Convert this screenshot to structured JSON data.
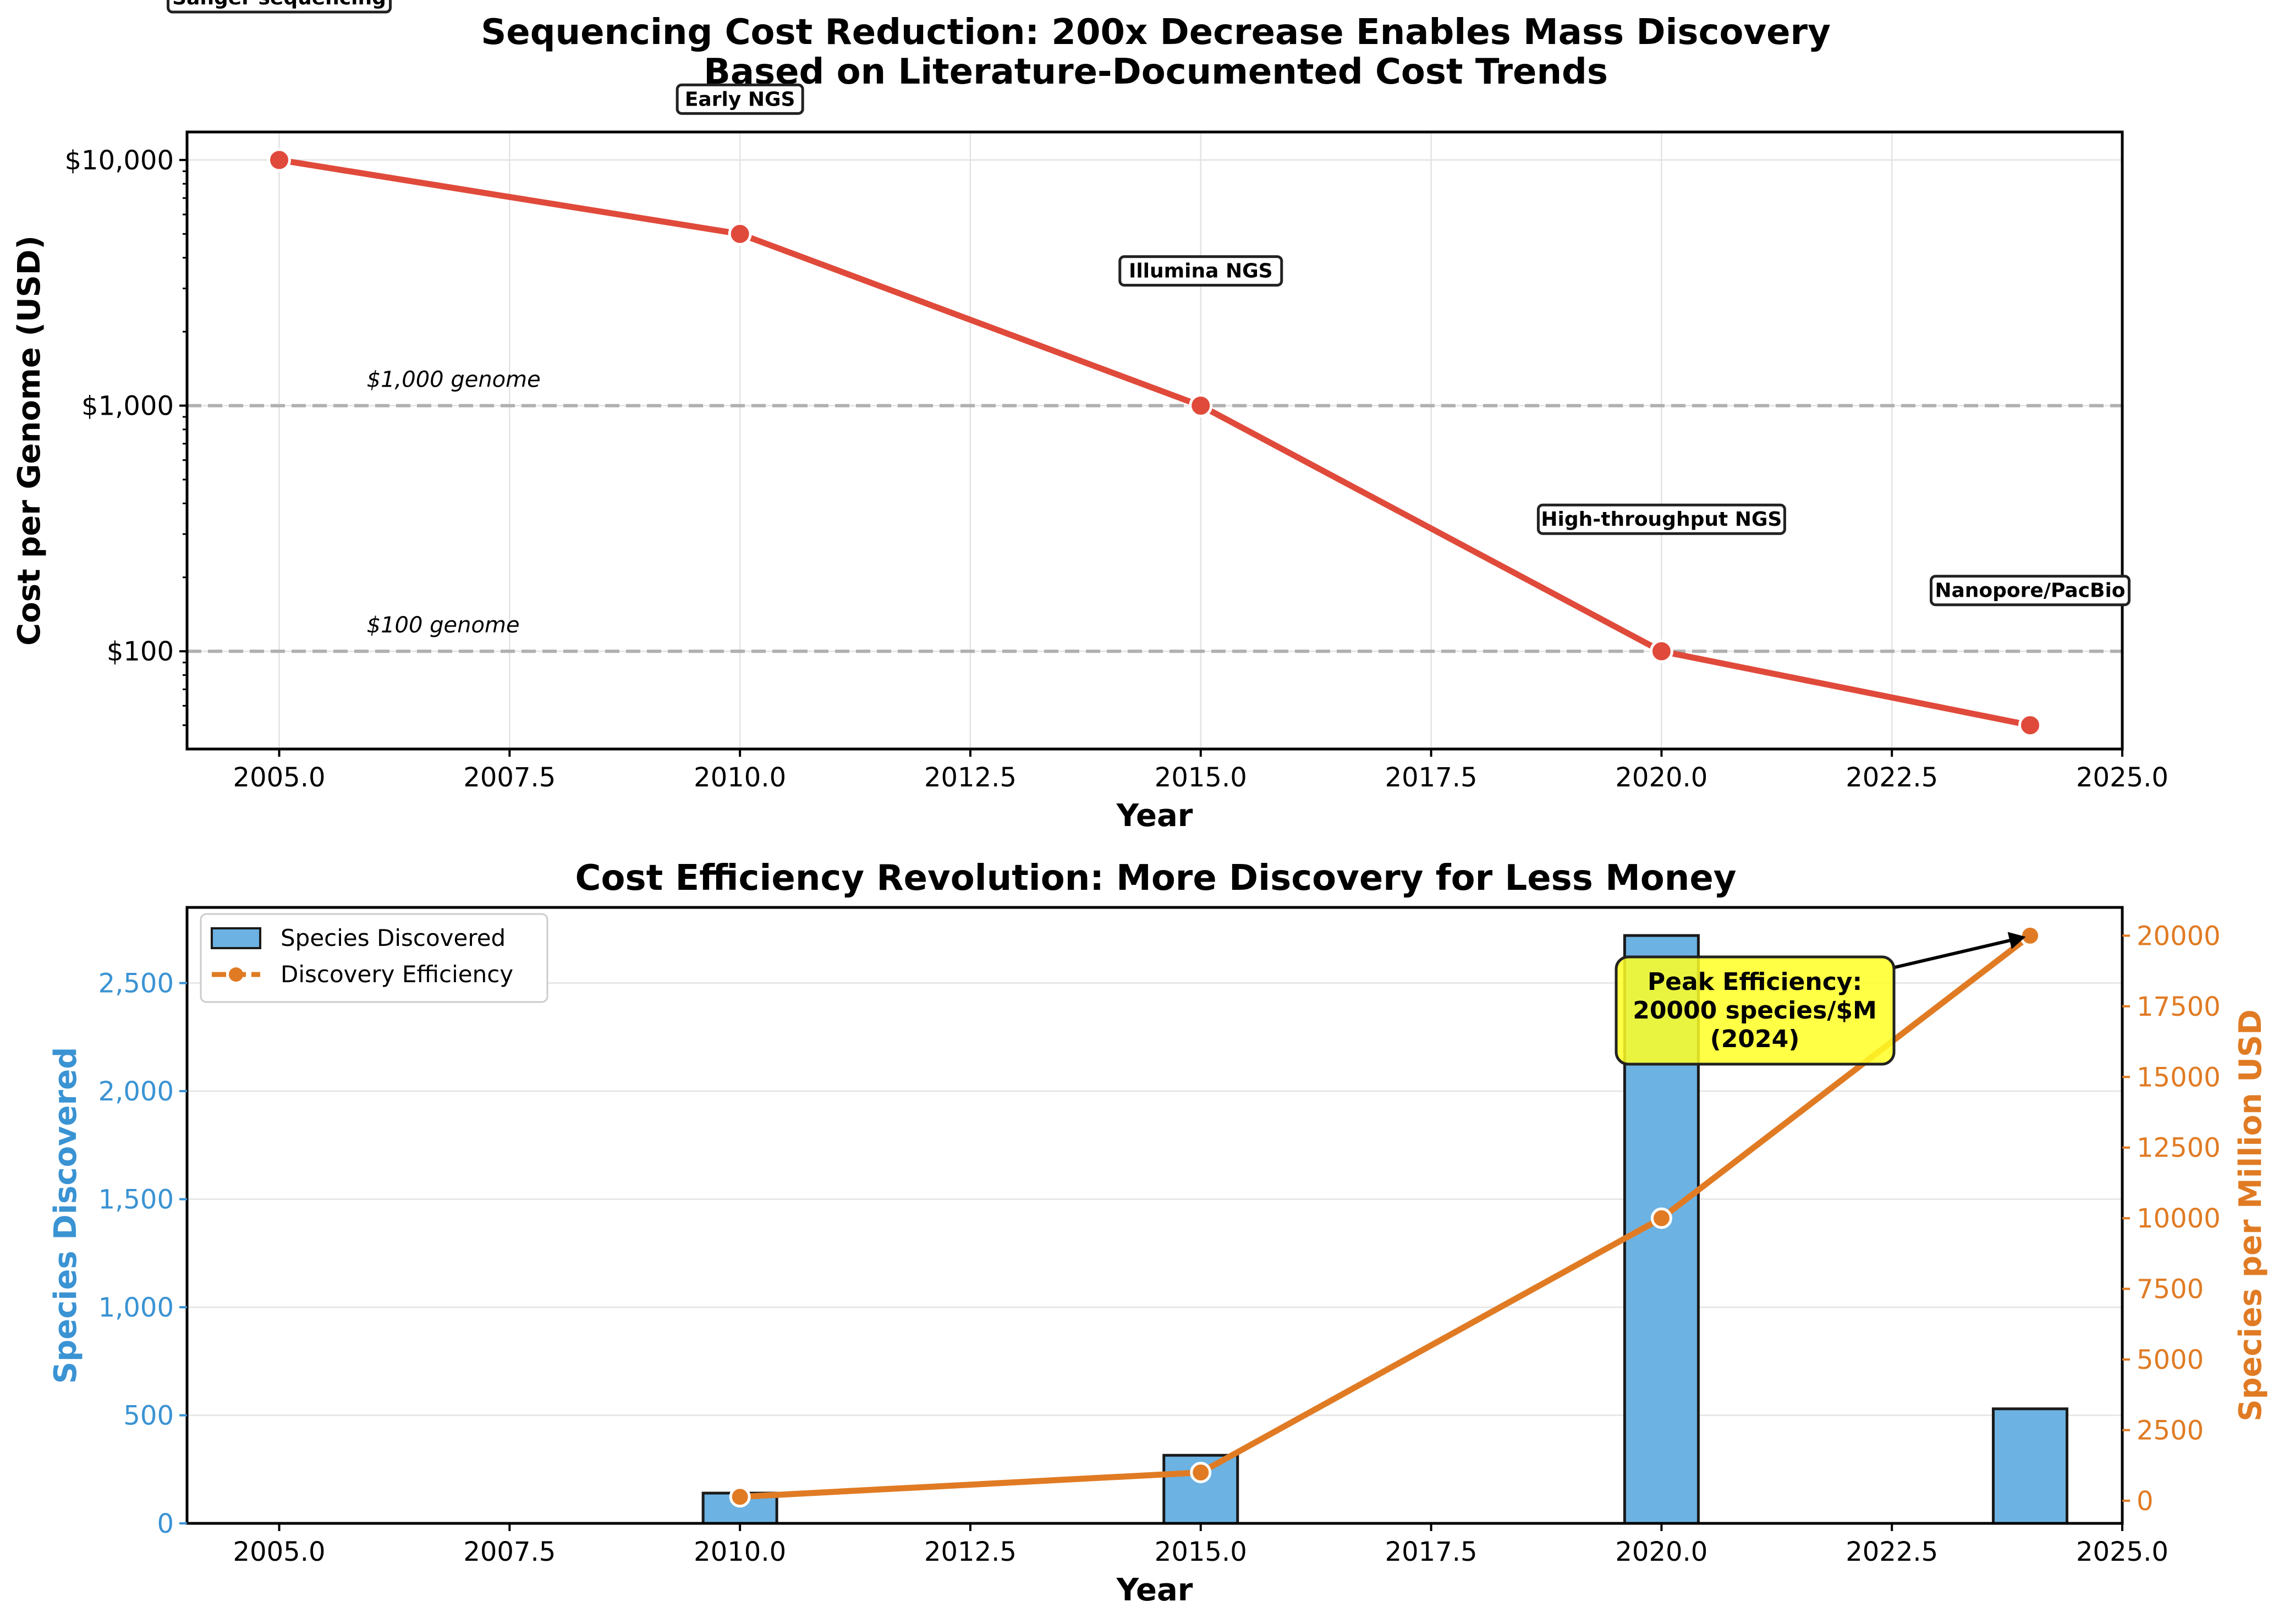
{
  "chart_data": [
    {
      "type": "line",
      "title": "Sequencing Cost Reduction: 200x Decrease Enables Mass Discovery",
      "subtitle": "Based on Literature-Documented Cost Trends",
      "xlabel": "Year",
      "ylabel": "Cost per Genome (USD)",
      "xlim": [
        2004,
        2025
      ],
      "ylim": [
        40,
        13000
      ],
      "yscale": "log",
      "x_ticks": [
        "2005.0",
        "2007.5",
        "2010.0",
        "2012.5",
        "2015.0",
        "2017.5",
        "2020.0",
        "2022.5",
        "2025.0"
      ],
      "y_ticks": [
        {
          "value": 100,
          "label": "$100"
        },
        {
          "value": 1000,
          "label": "$1,000"
        },
        {
          "value": 10000,
          "label": "$10,000"
        }
      ],
      "grid": true,
      "colors": {
        "line": "#e04a3b",
        "reference": "#b0b0b0"
      },
      "series": [
        {
          "x": [
            2005,
            2010,
            2015,
            2020,
            2024
          ],
          "y": [
            10000,
            5000,
            1000,
            100,
            50
          ]
        }
      ],
      "reference_lines": [
        {
          "y": 1000,
          "label": "$1,000 genome"
        },
        {
          "y": 100,
          "label": "$100 genome"
        }
      ],
      "annotations": [
        {
          "text": "Sanger sequencing",
          "x": 2005,
          "y": 10000
        },
        {
          "text": "Early NGS",
          "x": 2010,
          "y": 5000
        },
        {
          "text": "Illumina NGS",
          "x": 2015,
          "y": 1000
        },
        {
          "text": "High-throughput NGS",
          "x": 2020,
          "y": 100
        },
        {
          "text": "Nanopore/PacBio",
          "x": 2024,
          "y": 50
        }
      ]
    },
    {
      "type": "bar",
      "title": "Cost Efficiency Revolution: More Discovery for Less Money",
      "xlabel": "Year",
      "ylabel": "Species Discovered",
      "ylabel_right": "Species per Million USD",
      "xlim": [
        2004,
        2025
      ],
      "ylim": [
        0,
        2850
      ],
      "ylim_right": [
        -800,
        21000
      ],
      "x_ticks": [
        "2005.0",
        "2007.5",
        "2010.0",
        "2012.5",
        "2015.0",
        "2017.5",
        "2020.0",
        "2022.5",
        "2025.0"
      ],
      "y_ticks": [
        {
          "value": 0,
          "label": "0"
        },
        {
          "value": 500,
          "label": "500"
        },
        {
          "value": 1000,
          "label": "1,000"
        },
        {
          "value": 1500,
          "label": "1,500"
        },
        {
          "value": 2000,
          "label": "2,000"
        },
        {
          "value": 2500,
          "label": "2,500"
        }
      ],
      "y_ticks_right": [
        "0",
        "2500",
        "5000",
        "7500",
        "10000",
        "12500",
        "15000",
        "17500",
        "20000"
      ],
      "grid": true,
      "legend_position": "top-left",
      "colors": {
        "bars": "#6cb2e2",
        "bar_edge": "#1a1a1a",
        "line": "#e07b24",
        "left_axis": "#3a93d3",
        "right_axis": "#e07b24",
        "callout": "#ffff24"
      },
      "series": [
        {
          "name": "Species Discovered",
          "type": "bar",
          "x": [
            2010,
            2015,
            2020,
            2024
          ],
          "values": [
            140,
            315,
            2720,
            530
          ]
        },
        {
          "name": "Discovery Efficiency",
          "type": "line",
          "axis": "right",
          "x": [
            2010,
            2015,
            2020,
            2024
          ],
          "values": [
            140,
            1000,
            10000,
            20000
          ]
        }
      ],
      "callout": {
        "lines": [
          "Peak Efficiency:",
          "20000 species/$M",
          "(2024)"
        ],
        "points_to": {
          "x": 2024,
          "y": 20000
        }
      }
    }
  ]
}
